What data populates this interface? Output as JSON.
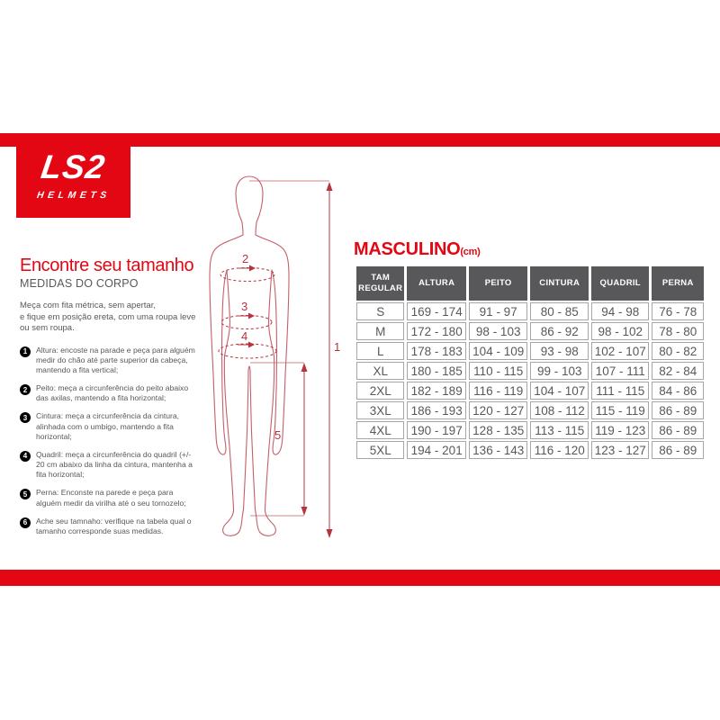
{
  "brand": {
    "logo_line1": "LS2",
    "logo_line2": "HELMETS"
  },
  "left_panel": {
    "title": "Encontre seu tamanho",
    "subtitle": "MEDIDAS DO CORPO",
    "intro_lines": [
      "Meça com fita métrica, sem apertar,",
      "e fique em posição ereta, com uma roupa leve",
      "ou sem roupa."
    ],
    "steps": [
      {
        "num": "1",
        "text": "Altura: encoste na parade e peça para alguém medir do chão até parte superior da cabeça, mantendo a fita vertical;"
      },
      {
        "num": "2",
        "text": "Peito: meça a circunferência do peito abaixo das axilas, mantendo a fita horizontal;"
      },
      {
        "num": "3",
        "text": "Cintura: meça a circunferência da cintura, alinhada com o umbigo, mantendo a fita horizontal;"
      },
      {
        "num": "4",
        "text": "Quadril: meça a circunferência do quadril (+/- 20 cm abaixo da linha da cintura, mantenha a fita horizontal;"
      },
      {
        "num": "5",
        "text": "Perna: Enconste na parede e peça para alguém medir da virilha até o seu tornozelo;"
      },
      {
        "num": "6",
        "text": "Ache seu tamnaho: verifique na tabela qual o tamanho corresponde suas medidas."
      }
    ]
  },
  "diagram": {
    "labels": [
      "1",
      "2",
      "3",
      "4",
      "5"
    ]
  },
  "size_table": {
    "title": "MASCULINO",
    "title_unit": "(cm)",
    "headers": [
      "TAM REGULAR",
      "ALTURA",
      "PEITO",
      "CINTURA",
      "QUADRIL",
      "PERNA"
    ],
    "rows": [
      [
        "S",
        "169 - 174",
        "91 - 97",
        "80 - 85",
        "94 - 98",
        "76 - 78"
      ],
      [
        "M",
        "172 - 180",
        "98 - 103",
        "86 - 92",
        "98 - 102",
        "78 - 80"
      ],
      [
        "L",
        "178 - 183",
        "104 - 109",
        "93 - 98",
        "102 - 107",
        "80 - 82"
      ],
      [
        "XL",
        "180 - 185",
        "110 - 115",
        "99 - 103",
        "107 - 111",
        "82 - 84"
      ],
      [
        "2XL",
        "182 - 189",
        "116 - 119",
        "104 - 107",
        "111 - 115",
        "84 - 86"
      ],
      [
        "3XL",
        "186 - 193",
        "120 - 127",
        "108 - 112",
        "115 - 119",
        "86 - 89"
      ],
      [
        "4XL",
        "190 - 197",
        "128 - 135",
        "113 - 115",
        "119 - 123",
        "86 - 89"
      ],
      [
        "5XL",
        "194 - 201",
        "136 - 143",
        "116 - 120",
        "123 - 127",
        "86 - 89"
      ]
    ]
  },
  "colors": {
    "brand_red": "#e30613",
    "dark_gray": "#58585a",
    "figure_red": "#c4606a",
    "accent_red": "#b4343f",
    "border_gray": "#a6a6a6"
  }
}
